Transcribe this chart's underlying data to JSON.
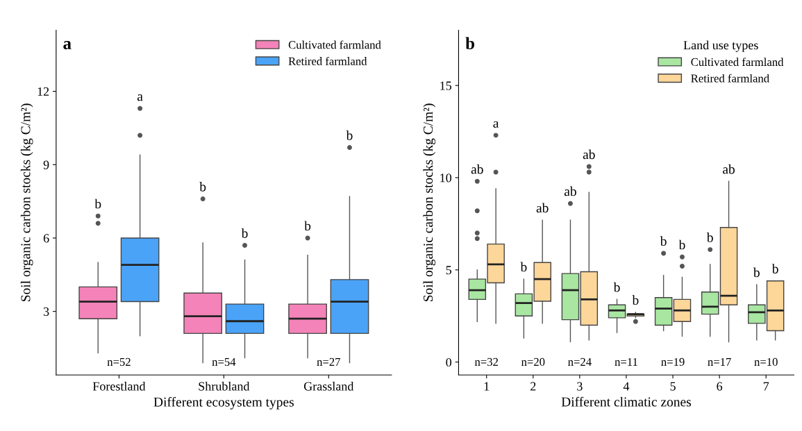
{
  "chart_data": [
    {
      "type": "box",
      "title": "a",
      "xlabel": "Different ecosystem types",
      "ylabel": "Soil organic carbon stocks (kg C/m²)",
      "categories": [
        "Forestland",
        "Shrubland",
        "Grassland"
      ],
      "ylim": [
        0.4,
        14.5
      ],
      "yticks": [
        3,
        6,
        9,
        12
      ],
      "legend": "top right",
      "grid": false,
      "series": [
        {
          "name": "Cultivated farmland",
          "color": "#f383b8",
          "value_labels": [
            "b",
            "b",
            "b"
          ],
          "boxes": [
            {
              "low": 1.3,
              "q1": 2.7,
              "median": 3.4,
              "q3": 4.0,
              "high": 5.0,
              "outliers": [
                6.9,
                6.6
              ]
            },
            {
              "low": 0.9,
              "q1": 2.1,
              "median": 2.8,
              "q3": 3.75,
              "high": 5.8,
              "outliers": [
                7.6
              ]
            },
            {
              "low": 1.1,
              "q1": 2.1,
              "median": 2.7,
              "q3": 3.3,
              "high": 5.3,
              "outliers": [
                6.0
              ]
            }
          ]
        },
        {
          "name": "Retired farmland",
          "color": "#4aa3f7",
          "value_labels": [
            "a",
            "b",
            "b"
          ],
          "boxes": [
            {
              "low": 2.0,
              "q1": 3.4,
              "median": 4.9,
              "q3": 6.0,
              "high": 9.4,
              "outliers": [
                11.3,
                10.2
              ]
            },
            {
              "low": 1.1,
              "q1": 2.1,
              "median": 2.6,
              "q3": 3.3,
              "high": 5.1,
              "outliers": [
                5.7
              ]
            },
            {
              "low": 0.9,
              "q1": 2.1,
              "median": 3.4,
              "q3": 4.3,
              "high": 7.7,
              "outliers": [
                9.7
              ]
            }
          ]
        }
      ],
      "annotations": [
        "n=52",
        "n=54",
        "n=27"
      ]
    },
    {
      "type": "box",
      "title": "b",
      "xlabel": "Different climatic zones",
      "ylabel": "Soil organic carbon stocks (kg C/m²)",
      "legend_title": "Land use types",
      "categories": [
        "1",
        "2",
        "3",
        "4",
        "5",
        "6",
        "7"
      ],
      "ylim": [
        -0.7,
        18
      ],
      "yticks": [
        0,
        5,
        10,
        15
      ],
      "legend": "top right",
      "grid": false,
      "series": [
        {
          "name": "Cultivated farmland",
          "color": "#a8e6a1",
          "value_labels": [
            "ab",
            "b",
            "ab",
            "b",
            "b",
            "b",
            "b"
          ],
          "boxes": [
            {
              "low": 2.2,
              "q1": 3.4,
              "median": 3.9,
              "q3": 4.5,
              "high": 5.0,
              "outliers": [
                9.8,
                8.2,
                7.0,
                6.7
              ]
            },
            {
              "low": 1.3,
              "q1": 2.5,
              "median": 3.2,
              "q3": 3.7,
              "high": 4.5
            },
            {
              "low": 1.1,
              "q1": 2.3,
              "median": 3.9,
              "q3": 4.8,
              "high": 7.7,
              "outliers": [
                8.6
              ]
            },
            {
              "low": 1.6,
              "q1": 2.4,
              "median": 2.8,
              "q3": 3.1,
              "high": 3.4
            },
            {
              "low": 1.7,
              "q1": 2.0,
              "median": 2.9,
              "q3": 3.5,
              "high": 4.7,
              "outliers": [
                5.9
              ]
            },
            {
              "low": 1.4,
              "q1": 2.6,
              "median": 3.0,
              "q3": 3.8,
              "high": 5.3,
              "outliers": [
                6.1
              ]
            },
            {
              "low": 1.2,
              "q1": 2.1,
              "median": 2.7,
              "q3": 3.1,
              "high": 4.2
            }
          ]
        },
        {
          "name": "Retired farmland",
          "color": "#fdd699",
          "value_labels": [
            "a",
            "ab",
            "ab",
            "b",
            "b",
            "ab",
            "b"
          ],
          "boxes": [
            {
              "low": 2.1,
              "q1": 4.3,
              "median": 5.3,
              "q3": 6.4,
              "high": 9.4,
              "outliers": [
                12.3,
                10.3
              ]
            },
            {
              "low": 2.1,
              "q1": 3.3,
              "median": 4.5,
              "q3": 5.4,
              "high": 7.7
            },
            {
              "low": 1.2,
              "q1": 2.0,
              "median": 3.4,
              "q3": 4.9,
              "high": 9.2,
              "outliers": [
                10.6,
                10.3
              ]
            },
            {
              "low": 2.4,
              "q1": 2.5,
              "median": 2.6,
              "q3": 2.6,
              "high": 2.7,
              "outliers": [
                2.2
              ]
            },
            {
              "low": 1.4,
              "q1": 2.2,
              "median": 2.8,
              "q3": 3.4,
              "high": 4.6,
              "outliers": [
                5.7,
                5.2
              ]
            },
            {
              "low": 1.1,
              "q1": 3.1,
              "median": 3.6,
              "q3": 7.3,
              "high": 9.8
            },
            {
              "low": 1.2,
              "q1": 1.7,
              "median": 2.8,
              "q3": 4.4,
              "high": 4.4
            }
          ]
        }
      ],
      "annotations": [
        "n=32",
        "n=20",
        "n=24",
        "n=11",
        "n=19",
        "n=17",
        "n=10"
      ]
    }
  ]
}
